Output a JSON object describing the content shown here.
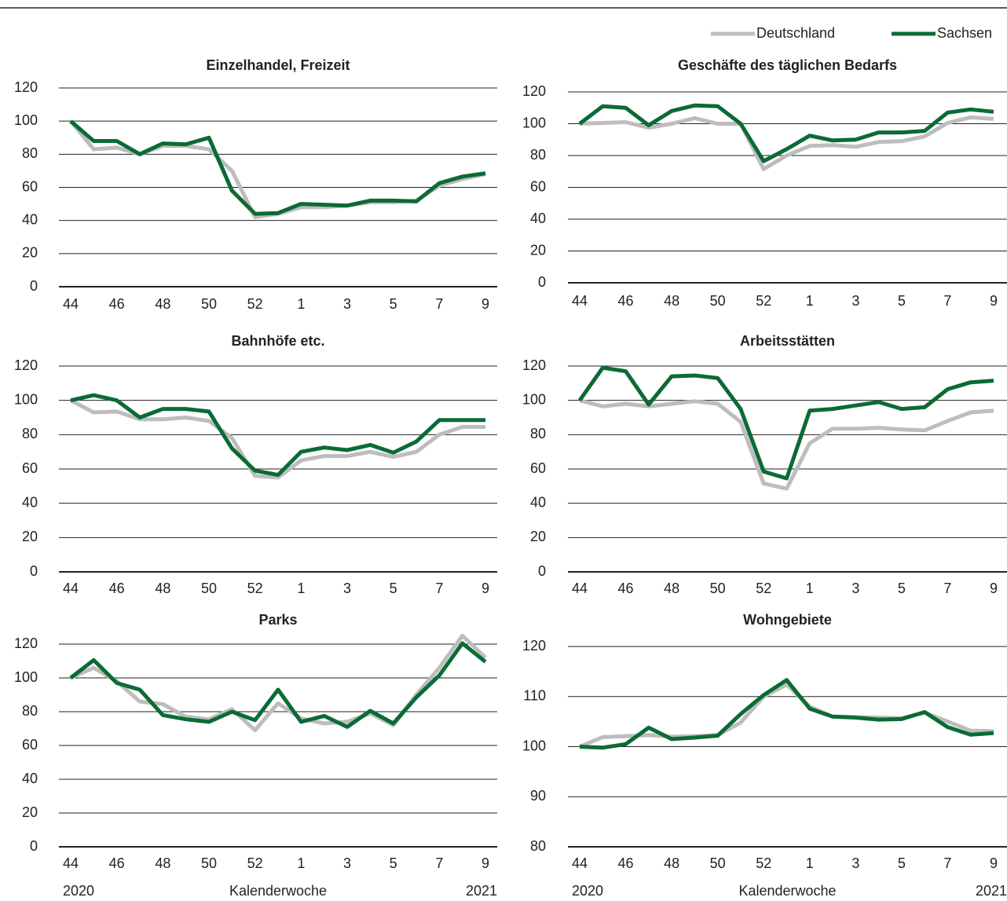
{
  "chart_data": [
    {
      "type": "line",
      "title": "Einzelhandel, Freizeit",
      "legend": "top-right",
      "categories": [
        44,
        null,
        46,
        null,
        48,
        null,
        50,
        null,
        52,
        null,
        1,
        null,
        3,
        null,
        5,
        null,
        7,
        null,
        9
      ],
      "series": [
        {
          "name": "Deutschland",
          "color": "#bdbdbd",
          "values": [
            100,
            83,
            84,
            80,
            85,
            85,
            83,
            70,
            42,
            44,
            48,
            48,
            49,
            51,
            51,
            52,
            61,
            65,
            68
          ]
        },
        {
          "name": "Sachsen",
          "color": "#0b6b35",
          "values": [
            100,
            88,
            88,
            80,
            86.5,
            86,
            90,
            58,
            44,
            44.5,
            50,
            49.5,
            49,
            52,
            52,
            51.5,
            62.5,
            66.5,
            68.5
          ]
        }
      ],
      "ylim": [
        0,
        120
      ],
      "yticks": [
        0,
        20,
        40,
        60,
        80,
        100,
        120
      ],
      "grid": true
    },
    {
      "type": "line",
      "title": "Geschäfte des täglichen Bedarfs",
      "categories": [
        44,
        null,
        46,
        null,
        48,
        null,
        50,
        null,
        52,
        null,
        1,
        null,
        3,
        null,
        5,
        null,
        7,
        null,
        9
      ],
      "series": [
        {
          "name": "Deutschland",
          "color": "#bdbdbd",
          "values": [
            100,
            100.5,
            101,
            97.5,
            100,
            103.5,
            100,
            100,
            71.5,
            80,
            86,
            86.5,
            85.5,
            88.5,
            89,
            92,
            100.5,
            104,
            103
          ]
        },
        {
          "name": "Sachsen",
          "color": "#0b6b35",
          "values": [
            100,
            111,
            110,
            99,
            108,
            111.5,
            111,
            100,
            76.5,
            84,
            92.5,
            89.5,
            90,
            94.5,
            94.5,
            95.5,
            107,
            109,
            107.5
          ]
        }
      ],
      "ylim": [
        0,
        120
      ],
      "yticks": [
        0,
        20,
        40,
        60,
        80,
        100,
        120
      ],
      "grid": true
    },
    {
      "type": "line",
      "title": "Bahnhöfe etc.",
      "categories": [
        44,
        null,
        46,
        null,
        48,
        null,
        50,
        null,
        52,
        null,
        1,
        null,
        3,
        null,
        5,
        null,
        7,
        null,
        9
      ],
      "series": [
        {
          "name": "Deutschland",
          "color": "#bdbdbd",
          "values": [
            100,
            93,
            93.5,
            89,
            89,
            90,
            88,
            78,
            56,
            55,
            65,
            67.5,
            67.5,
            70,
            67,
            70,
            80,
            84.5,
            84.5
          ]
        },
        {
          "name": "Sachsen",
          "color": "#0b6b35",
          "values": [
            100,
            103,
            100,
            90,
            95,
            95,
            93.5,
            72,
            59,
            56.5,
            70,
            72.5,
            71,
            74,
            69.5,
            76,
            88.5,
            88.5,
            88.5
          ]
        }
      ],
      "ylim": [
        0,
        120
      ],
      "yticks": [
        0,
        20,
        40,
        60,
        80,
        100,
        120
      ],
      "grid": true
    },
    {
      "type": "line",
      "title": "Arbeitsstätten",
      "categories": [
        44,
        null,
        46,
        null,
        48,
        null,
        50,
        null,
        52,
        null,
        1,
        null,
        3,
        null,
        5,
        null,
        7,
        null,
        9
      ],
      "series": [
        {
          "name": "Deutschland",
          "color": "#bdbdbd",
          "values": [
            100,
            96.5,
            98,
            96.5,
            98,
            99.5,
            98,
            87.5,
            51.5,
            48.5,
            75,
            83.5,
            83.5,
            84,
            83,
            82.5,
            88,
            93,
            94
          ]
        },
        {
          "name": "Sachsen",
          "color": "#0b6b35",
          "values": [
            100,
            119,
            117,
            97.5,
            114,
            114.5,
            113,
            95,
            58.5,
            54.5,
            94,
            95,
            97,
            99,
            95,
            96,
            106.5,
            110.5,
            111.5
          ]
        }
      ],
      "ylim": [
        0,
        120
      ],
      "yticks": [
        0,
        20,
        40,
        60,
        80,
        100,
        120
      ],
      "grid": true
    },
    {
      "type": "line",
      "title": "Parks",
      "xlabel": "Kalenderwoche",
      "year_start": "2020",
      "year_end": "2021",
      "categories": [
        44,
        null,
        46,
        null,
        48,
        null,
        50,
        null,
        52,
        null,
        1,
        null,
        3,
        null,
        5,
        null,
        7,
        null,
        9
      ],
      "series": [
        {
          "name": "Deutschland",
          "color": "#bdbdbd",
          "values": [
            100,
            106,
            98,
            86,
            84.5,
            77,
            75.5,
            81.5,
            69,
            85,
            76,
            73,
            74,
            79,
            72,
            90,
            106,
            125,
            112
          ]
        },
        {
          "name": "Sachsen",
          "color": "#0b6b35",
          "values": [
            100,
            110.5,
            97,
            93,
            78,
            75.5,
            74,
            80,
            75,
            93,
            74,
            77.5,
            71,
            80.5,
            73,
            88.5,
            101.5,
            120.5,
            109.5
          ]
        }
      ],
      "ylim": [
        0,
        120
      ],
      "yticks": [
        0,
        20,
        40,
        60,
        80,
        100,
        120
      ],
      "grid": true
    },
    {
      "type": "line",
      "title": "Wohngebiete",
      "xlabel": "Kalenderwoche",
      "year_start": "2020",
      "year_end": "2021",
      "categories": [
        44,
        null,
        46,
        null,
        48,
        null,
        50,
        null,
        52,
        null,
        1,
        null,
        3,
        null,
        5,
        null,
        7,
        null,
        9
      ],
      "series": [
        {
          "name": "Deutschland",
          "color": "#bdbdbd",
          "values": [
            100,
            101.9,
            102.1,
            102.3,
            102,
            102.1,
            102.3,
            104.8,
            110,
            112.4,
            108,
            106,
            105.9,
            105.8,
            105.7,
            106.8,
            105,
            103.2,
            103.1
          ]
        },
        {
          "name": "Sachsen",
          "color": "#0b6b35",
          "values": [
            100,
            99.8,
            100.5,
            103.8,
            101.5,
            101.8,
            102.2,
            106.5,
            110.3,
            113.3,
            107.6,
            106,
            105.8,
            105.4,
            105.5,
            106.9,
            103.9,
            102.4,
            102.7
          ]
        }
      ],
      "ylim": [
        80,
        120
      ],
      "yticks": [
        80,
        90,
        100,
        110,
        120
      ],
      "grid": true
    }
  ]
}
